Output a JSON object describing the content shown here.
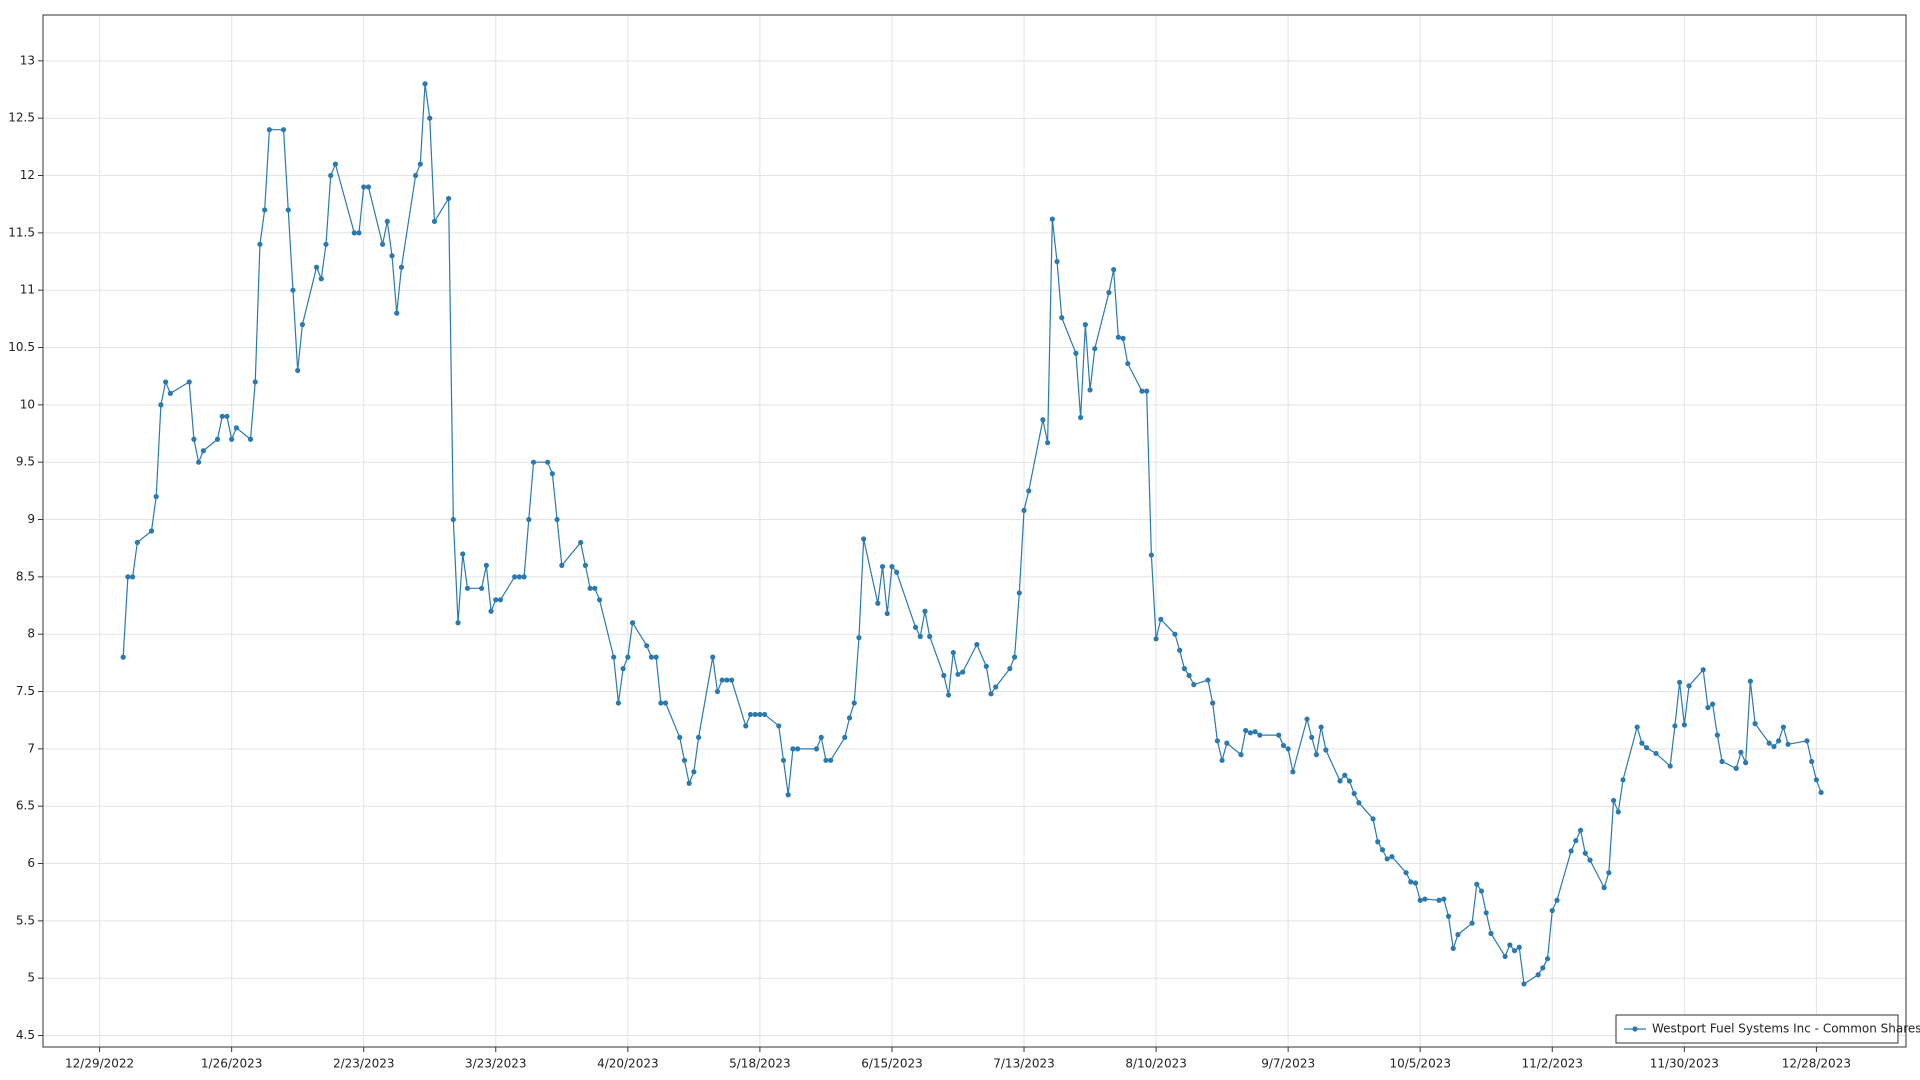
{
  "chart_data": {
    "type": "line",
    "x": [
      "1/3/2023",
      "1/4/2023",
      "1/5/2023",
      "1/6/2023",
      "1/9/2023",
      "1/10/2023",
      "1/11/2023",
      "1/12/2023",
      "1/13/2023",
      "1/17/2023",
      "1/18/2023",
      "1/19/2023",
      "1/20/2023",
      "1/23/2023",
      "1/24/2023",
      "1/25/2023",
      "1/26/2023",
      "1/27/2023",
      "1/30/2023",
      "1/31/2023",
      "2/1/2023",
      "2/2/2023",
      "2/3/2023",
      "2/6/2023",
      "2/7/2023",
      "2/8/2023",
      "2/9/2023",
      "2/10/2023",
      "2/13/2023",
      "2/14/2023",
      "2/15/2023",
      "2/16/2023",
      "2/17/2023",
      "2/21/2023",
      "2/22/2023",
      "2/23/2023",
      "2/24/2023",
      "2/27/2023",
      "2/28/2023",
      "3/1/2023",
      "3/2/2023",
      "3/3/2023",
      "3/6/2023",
      "3/7/2023",
      "3/8/2023",
      "3/9/2023",
      "3/10/2023",
      "3/13/2023",
      "3/14/2023",
      "3/15/2023",
      "3/16/2023",
      "3/17/2023",
      "3/20/2023",
      "3/21/2023",
      "3/22/2023",
      "3/23/2023",
      "3/24/2023",
      "3/27/2023",
      "3/28/2023",
      "3/29/2023",
      "3/30/2023",
      "3/31/2023",
      "4/3/2023",
      "4/4/2023",
      "4/5/2023",
      "4/6/2023",
      "4/10/2023",
      "4/11/2023",
      "4/12/2023",
      "4/13/2023",
      "4/14/2023",
      "4/17/2023",
      "4/18/2023",
      "4/19/2023",
      "4/20/2023",
      "4/21/2023",
      "4/24/2023",
      "4/25/2023",
      "4/26/2023",
      "4/27/2023",
      "4/28/2023",
      "5/1/2023",
      "5/2/2023",
      "5/3/2023",
      "5/4/2023",
      "5/5/2023",
      "5/8/2023",
      "5/9/2023",
      "5/10/2023",
      "5/11/2023",
      "5/12/2023",
      "5/15/2023",
      "5/16/2023",
      "5/17/2023",
      "5/18/2023",
      "5/19/2023",
      "5/22/2023",
      "5/23/2023",
      "5/24/2023",
      "5/25/2023",
      "5/26/2023",
      "5/30/2023",
      "5/31/2023",
      "6/1/2023",
      "6/2/2023",
      "6/5/2023",
      "6/6/2023",
      "6/7/2023",
      "6/8/2023",
      "6/9/2023",
      "6/12/2023",
      "6/13/2023",
      "6/14/2023",
      "6/15/2023",
      "6/16/2023",
      "6/20/2023",
      "6/21/2023",
      "6/22/2023",
      "6/23/2023",
      "6/26/2023",
      "6/27/2023",
      "6/28/2023",
      "6/29/2023",
      "6/30/2023",
      "7/3/2023",
      "7/5/2023",
      "7/6/2023",
      "7/7/2023",
      "7/10/2023",
      "7/11/2023",
      "7/12/2023",
      "7/13/2023",
      "7/14/2023",
      "7/17/2023",
      "7/18/2023",
      "7/19/2023",
      "7/20/2023",
      "7/21/2023",
      "7/24/2023",
      "7/25/2023",
      "7/26/2023",
      "7/27/2023",
      "7/28/2023",
      "7/31/2023",
      "8/1/2023",
      "8/2/2023",
      "8/3/2023",
      "8/4/2023",
      "8/7/2023",
      "8/8/2023",
      "8/9/2023",
      "8/10/2023",
      "8/11/2023",
      "8/14/2023",
      "8/15/2023",
      "8/16/2023",
      "8/17/2023",
      "8/18/2023",
      "8/21/2023",
      "8/22/2023",
      "8/23/2023",
      "8/24/2023",
      "8/25/2023",
      "8/28/2023",
      "8/29/2023",
      "8/30/2023",
      "8/31/2023",
      "9/1/2023",
      "9/5/2023",
      "9/6/2023",
      "9/7/2023",
      "9/8/2023",
      "9/11/2023",
      "9/12/2023",
      "9/13/2023",
      "9/14/2023",
      "9/15/2023",
      "9/18/2023",
      "9/19/2023",
      "9/20/2023",
      "9/21/2023",
      "9/22/2023",
      "9/25/2023",
      "9/26/2023",
      "9/27/2023",
      "9/28/2023",
      "9/29/2023",
      "10/2/2023",
      "10/3/2023",
      "10/4/2023",
      "10/5/2023",
      "10/6/2023",
      "10/9/2023",
      "10/10/2023",
      "10/11/2023",
      "10/12/2023",
      "10/13/2023",
      "10/16/2023",
      "10/17/2023",
      "10/18/2023",
      "10/19/2023",
      "10/20/2023",
      "10/23/2023",
      "10/24/2023",
      "10/25/2023",
      "10/26/2023",
      "10/27/2023",
      "10/30/2023",
      "10/31/2023",
      "11/1/2023",
      "11/2/2023",
      "11/3/2023",
      "11/6/2023",
      "11/7/2023",
      "11/8/2023",
      "11/9/2023",
      "11/10/2023",
      "11/13/2023",
      "11/14/2023",
      "11/15/2023",
      "11/16/2023",
      "11/17/2023",
      "11/20/2023",
      "11/21/2023",
      "11/22/2023",
      "11/24/2023",
      "11/27/2023",
      "11/28/2023",
      "11/29/2023",
      "11/30/2023",
      "12/1/2023",
      "12/4/2023",
      "12/5/2023",
      "12/6/2023",
      "12/7/2023",
      "12/8/2023",
      "12/11/2023",
      "12/12/2023",
      "12/13/2023",
      "12/14/2023",
      "12/15/2023",
      "12/18/2023",
      "12/19/2023",
      "12/20/2023",
      "12/21/2023",
      "12/22/2023",
      "12/26/2023",
      "12/27/2023",
      "12/28/2023",
      "12/29/2023"
    ],
    "series": [
      {
        "name": "Westport Fuel Systems Inc - Common Shares",
        "color": "#2a7ab0",
        "values": [
          7.8,
          8.5,
          8.5,
          8.8,
          8.9,
          9.2,
          10.0,
          10.2,
          10.1,
          10.2,
          9.7,
          9.5,
          9.6,
          9.7,
          9.9,
          9.9,
          9.7,
          9.8,
          9.7,
          10.2,
          11.4,
          11.7,
          12.4,
          12.4,
          11.7,
          11.0,
          10.3,
          10.7,
          11.2,
          11.1,
          11.4,
          12.0,
          12.1,
          11.5,
          11.5,
          11.9,
          11.9,
          11.4,
          11.6,
          11.3,
          10.8,
          11.2,
          12.0,
          12.1,
          12.8,
          12.5,
          11.6,
          11.8,
          9.0,
          8.1,
          8.7,
          8.4,
          8.4,
          8.6,
          8.2,
          8.3,
          8.3,
          8.5,
          8.5,
          8.5,
          9.0,
          9.5,
          9.5,
          9.4,
          9.0,
          8.6,
          8.8,
          8.6,
          8.4,
          8.4,
          8.3,
          7.8,
          7.4,
          7.7,
          7.8,
          8.1,
          7.9,
          7.8,
          7.8,
          7.4,
          7.4,
          7.1,
          6.9,
          6.7,
          6.8,
          7.1,
          7.8,
          7.5,
          7.6,
          7.6,
          7.6,
          7.2,
          7.3,
          7.3,
          7.3,
          7.3,
          7.2,
          6.9,
          6.6,
          7.0,
          7.0,
          7.0,
          7.1,
          6.9,
          6.9,
          7.1,
          7.27,
          7.4,
          7.97,
          8.83,
          8.27,
          8.59,
          8.18,
          8.59,
          8.54,
          8.06,
          7.98,
          8.2,
          7.98,
          7.64,
          7.47,
          7.84,
          7.65,
          7.67,
          7.91,
          7.72,
          7.48,
          7.54,
          7.7,
          7.8,
          8.36,
          9.08,
          9.25,
          9.87,
          9.67,
          11.62,
          11.25,
          10.76,
          10.45,
          9.89,
          10.7,
          10.13,
          10.49,
          10.98,
          11.18,
          10.59,
          10.58,
          10.36,
          10.12,
          10.12,
          8.69,
          7.96,
          8.13,
          8.0,
          7.86,
          7.7,
          7.64,
          7.56,
          7.6,
          7.4,
          7.07,
          6.9,
          7.05,
          6.95,
          7.16,
          7.14,
          7.15,
          7.12,
          7.12,
          7.03,
          7.0,
          6.8,
          7.26,
          7.1,
          6.95,
          7.19,
          6.99,
          6.72,
          6.77,
          6.72,
          6.61,
          6.53,
          6.39,
          6.19,
          6.12,
          6.04,
          6.06,
          5.92,
          5.84,
          5.83,
          5.68,
          5.69,
          5.68,
          5.69,
          5.54,
          5.26,
          5.38,
          5.48,
          5.82,
          5.76,
          5.57,
          5.39,
          5.19,
          5.29,
          5.24,
          5.27,
          4.95,
          5.03,
          5.09,
          5.17,
          5.59,
          5.68,
          6.11,
          6.2,
          6.29,
          6.09,
          6.03,
          5.79,
          5.92,
          6.55,
          6.45,
          6.73,
          7.19,
          7.05,
          7.01,
          6.96,
          6.85,
          7.2,
          7.58,
          7.21,
          7.55,
          7.69,
          7.36,
          7.39,
          7.12,
          6.89,
          6.83,
          6.97,
          6.88,
          7.59,
          7.22,
          7.05,
          7.02,
          7.07,
          7.19,
          7.04,
          7.07,
          6.89,
          6.73,
          6.62
        ]
      }
    ],
    "xlim": [
      "12/17/2022",
      "1/16/2024"
    ],
    "xticks": [
      "12/29/2022",
      "1/26/2023",
      "2/23/2023",
      "3/23/2023",
      "4/20/2023",
      "5/18/2023",
      "6/15/2023",
      "7/13/2023",
      "8/10/2023",
      "9/7/2023",
      "10/5/2023",
      "11/2/2023",
      "11/30/2023",
      "12/28/2023"
    ],
    "ylim": [
      4.4,
      13.4
    ],
    "yticks": [
      4.5,
      5,
      5.5,
      6,
      6.5,
      7,
      7.5,
      8,
      8.5,
      9,
      9.5,
      10,
      10.5,
      11,
      11.5,
      12,
      12.5,
      13
    ],
    "grid": true,
    "legend": "lower right"
  }
}
